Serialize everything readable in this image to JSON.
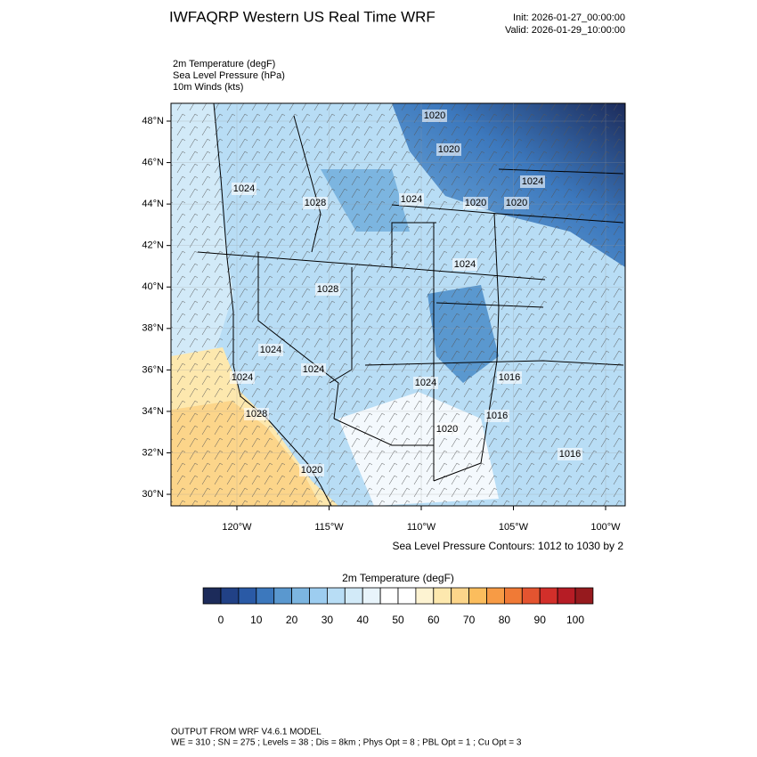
{
  "header": {
    "title": "IWFAQRP Western US Real Time WRF",
    "init": "Init: 2026-01-27_00:00:00",
    "valid": "Valid: 2026-01-29_10:00:00"
  },
  "fields": [
    "2m Temperature   (degF)",
    "Sea Level Pressure   (hPa)",
    "10m Winds   (kts)"
  ],
  "map": {
    "yticks": [
      {
        "value": 48,
        "label": "48°N"
      },
      {
        "value": 46,
        "label": "46°N"
      },
      {
        "value": 44,
        "label": "44°N"
      },
      {
        "value": 42,
        "label": "42°N"
      },
      {
        "value": 40,
        "label": "40°N"
      },
      {
        "value": 38,
        "label": "38°N"
      },
      {
        "value": 36,
        "label": "36°N"
      },
      {
        "value": 34,
        "label": "34°N"
      },
      {
        "value": 32,
        "label": "32°N"
      },
      {
        "value": 30,
        "label": "30°N"
      }
    ],
    "xticks": [
      {
        "value": -120,
        "label": "120°W"
      },
      {
        "value": -115,
        "label": "115°W"
      },
      {
        "value": -110,
        "label": "110°W"
      },
      {
        "value": -105,
        "label": "105°W"
      },
      {
        "value": -100,
        "label": "100°W"
      }
    ],
    "contour_labels": [
      "1020",
      "1020",
      "1024",
      "1028",
      "1024",
      "1020",
      "1020",
      "1024",
      "1024",
      "1028",
      "1024",
      "1024",
      "1024",
      "1024",
      "1016",
      "1028",
      "1016",
      "1020",
      "1020",
      "1016"
    ],
    "contour_note": "Sea Level Pressure Contours: 1012 to 1030 by 2"
  },
  "colorbar": {
    "title": "2m Temperature  (degF)",
    "colors": [
      "#1c2b5a",
      "#214186",
      "#2a5aa6",
      "#3c78bd",
      "#5a98cf",
      "#7cb5e0",
      "#9dcdf0",
      "#b8ddf5",
      "#d2eaf8",
      "#e8f4fb",
      "#ffffff",
      "#ffffff",
      "#fdf3d2",
      "#fde8ae",
      "#fcd58a",
      "#fbbd5d",
      "#f79b45",
      "#f07a36",
      "#e45430",
      "#d22f2a",
      "#b61c25",
      "#961a1e"
    ],
    "ticks": [
      0,
      10,
      20,
      30,
      40,
      50,
      60,
      70,
      80,
      90,
      100
    ]
  },
  "footer": {
    "line1": "OUTPUT FROM WRF V4.6.1 MODEL",
    "line2": "WE = 310 ; SN = 275 ; Levels = 38 ; Dis = 8km ; Phys Opt = 8 ; PBL Opt = 1 ; Cu Opt = 3"
  }
}
